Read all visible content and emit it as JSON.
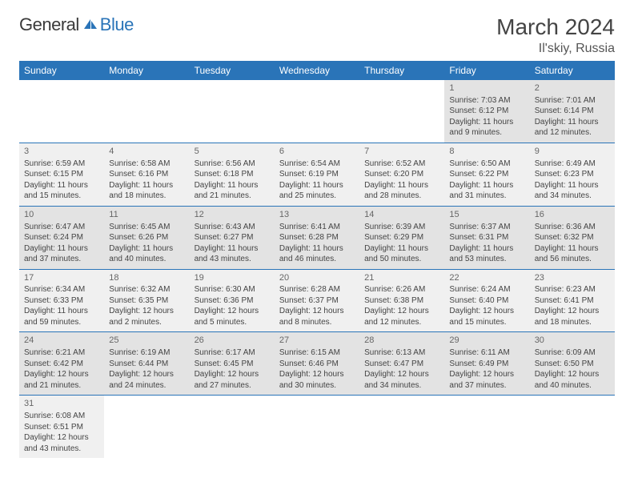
{
  "logo": {
    "text1": "General",
    "text2": "Blue"
  },
  "title": {
    "month": "March 2024",
    "location": "Il'skiy, Russia"
  },
  "colors": {
    "header_bg": "#2a74b8",
    "header_fg": "#ffffff",
    "row_border": "#2a74b8"
  },
  "dayHeaders": [
    "Sunday",
    "Monday",
    "Tuesday",
    "Wednesday",
    "Thursday",
    "Friday",
    "Saturday"
  ],
  "weeks": [
    [
      null,
      null,
      null,
      null,
      null,
      {
        "d": "1",
        "sr": "Sunrise: 7:03 AM",
        "ss": "Sunset: 6:12 PM",
        "dl1": "Daylight: 11 hours",
        "dl2": "and 9 minutes."
      },
      {
        "d": "2",
        "sr": "Sunrise: 7:01 AM",
        "ss": "Sunset: 6:14 PM",
        "dl1": "Daylight: 11 hours",
        "dl2": "and 12 minutes."
      }
    ],
    [
      {
        "d": "3",
        "sr": "Sunrise: 6:59 AM",
        "ss": "Sunset: 6:15 PM",
        "dl1": "Daylight: 11 hours",
        "dl2": "and 15 minutes."
      },
      {
        "d": "4",
        "sr": "Sunrise: 6:58 AM",
        "ss": "Sunset: 6:16 PM",
        "dl1": "Daylight: 11 hours",
        "dl2": "and 18 minutes."
      },
      {
        "d": "5",
        "sr": "Sunrise: 6:56 AM",
        "ss": "Sunset: 6:18 PM",
        "dl1": "Daylight: 11 hours",
        "dl2": "and 21 minutes."
      },
      {
        "d": "6",
        "sr": "Sunrise: 6:54 AM",
        "ss": "Sunset: 6:19 PM",
        "dl1": "Daylight: 11 hours",
        "dl2": "and 25 minutes."
      },
      {
        "d": "7",
        "sr": "Sunrise: 6:52 AM",
        "ss": "Sunset: 6:20 PM",
        "dl1": "Daylight: 11 hours",
        "dl2": "and 28 minutes."
      },
      {
        "d": "8",
        "sr": "Sunrise: 6:50 AM",
        "ss": "Sunset: 6:22 PM",
        "dl1": "Daylight: 11 hours",
        "dl2": "and 31 minutes."
      },
      {
        "d": "9",
        "sr": "Sunrise: 6:49 AM",
        "ss": "Sunset: 6:23 PM",
        "dl1": "Daylight: 11 hours",
        "dl2": "and 34 minutes."
      }
    ],
    [
      {
        "d": "10",
        "sr": "Sunrise: 6:47 AM",
        "ss": "Sunset: 6:24 PM",
        "dl1": "Daylight: 11 hours",
        "dl2": "and 37 minutes."
      },
      {
        "d": "11",
        "sr": "Sunrise: 6:45 AM",
        "ss": "Sunset: 6:26 PM",
        "dl1": "Daylight: 11 hours",
        "dl2": "and 40 minutes."
      },
      {
        "d": "12",
        "sr": "Sunrise: 6:43 AM",
        "ss": "Sunset: 6:27 PM",
        "dl1": "Daylight: 11 hours",
        "dl2": "and 43 minutes."
      },
      {
        "d": "13",
        "sr": "Sunrise: 6:41 AM",
        "ss": "Sunset: 6:28 PM",
        "dl1": "Daylight: 11 hours",
        "dl2": "and 46 minutes."
      },
      {
        "d": "14",
        "sr": "Sunrise: 6:39 AM",
        "ss": "Sunset: 6:29 PM",
        "dl1": "Daylight: 11 hours",
        "dl2": "and 50 minutes."
      },
      {
        "d": "15",
        "sr": "Sunrise: 6:37 AM",
        "ss": "Sunset: 6:31 PM",
        "dl1": "Daylight: 11 hours",
        "dl2": "and 53 minutes."
      },
      {
        "d": "16",
        "sr": "Sunrise: 6:36 AM",
        "ss": "Sunset: 6:32 PM",
        "dl1": "Daylight: 11 hours",
        "dl2": "and 56 minutes."
      }
    ],
    [
      {
        "d": "17",
        "sr": "Sunrise: 6:34 AM",
        "ss": "Sunset: 6:33 PM",
        "dl1": "Daylight: 11 hours",
        "dl2": "and 59 minutes."
      },
      {
        "d": "18",
        "sr": "Sunrise: 6:32 AM",
        "ss": "Sunset: 6:35 PM",
        "dl1": "Daylight: 12 hours",
        "dl2": "and 2 minutes."
      },
      {
        "d": "19",
        "sr": "Sunrise: 6:30 AM",
        "ss": "Sunset: 6:36 PM",
        "dl1": "Daylight: 12 hours",
        "dl2": "and 5 minutes."
      },
      {
        "d": "20",
        "sr": "Sunrise: 6:28 AM",
        "ss": "Sunset: 6:37 PM",
        "dl1": "Daylight: 12 hours",
        "dl2": "and 8 minutes."
      },
      {
        "d": "21",
        "sr": "Sunrise: 6:26 AM",
        "ss": "Sunset: 6:38 PM",
        "dl1": "Daylight: 12 hours",
        "dl2": "and 12 minutes."
      },
      {
        "d": "22",
        "sr": "Sunrise: 6:24 AM",
        "ss": "Sunset: 6:40 PM",
        "dl1": "Daylight: 12 hours",
        "dl2": "and 15 minutes."
      },
      {
        "d": "23",
        "sr": "Sunrise: 6:23 AM",
        "ss": "Sunset: 6:41 PM",
        "dl1": "Daylight: 12 hours",
        "dl2": "and 18 minutes."
      }
    ],
    [
      {
        "d": "24",
        "sr": "Sunrise: 6:21 AM",
        "ss": "Sunset: 6:42 PM",
        "dl1": "Daylight: 12 hours",
        "dl2": "and 21 minutes."
      },
      {
        "d": "25",
        "sr": "Sunrise: 6:19 AM",
        "ss": "Sunset: 6:44 PM",
        "dl1": "Daylight: 12 hours",
        "dl2": "and 24 minutes."
      },
      {
        "d": "26",
        "sr": "Sunrise: 6:17 AM",
        "ss": "Sunset: 6:45 PM",
        "dl1": "Daylight: 12 hours",
        "dl2": "and 27 minutes."
      },
      {
        "d": "27",
        "sr": "Sunrise: 6:15 AM",
        "ss": "Sunset: 6:46 PM",
        "dl1": "Daylight: 12 hours",
        "dl2": "and 30 minutes."
      },
      {
        "d": "28",
        "sr": "Sunrise: 6:13 AM",
        "ss": "Sunset: 6:47 PM",
        "dl1": "Daylight: 12 hours",
        "dl2": "and 34 minutes."
      },
      {
        "d": "29",
        "sr": "Sunrise: 6:11 AM",
        "ss": "Sunset: 6:49 PM",
        "dl1": "Daylight: 12 hours",
        "dl2": "and 37 minutes."
      },
      {
        "d": "30",
        "sr": "Sunrise: 6:09 AM",
        "ss": "Sunset: 6:50 PM",
        "dl1": "Daylight: 12 hours",
        "dl2": "and 40 minutes."
      }
    ],
    [
      {
        "d": "31",
        "sr": "Sunrise: 6:08 AM",
        "ss": "Sunset: 6:51 PM",
        "dl1": "Daylight: 12 hours",
        "dl2": "and 43 minutes."
      },
      null,
      null,
      null,
      null,
      null,
      null
    ]
  ]
}
